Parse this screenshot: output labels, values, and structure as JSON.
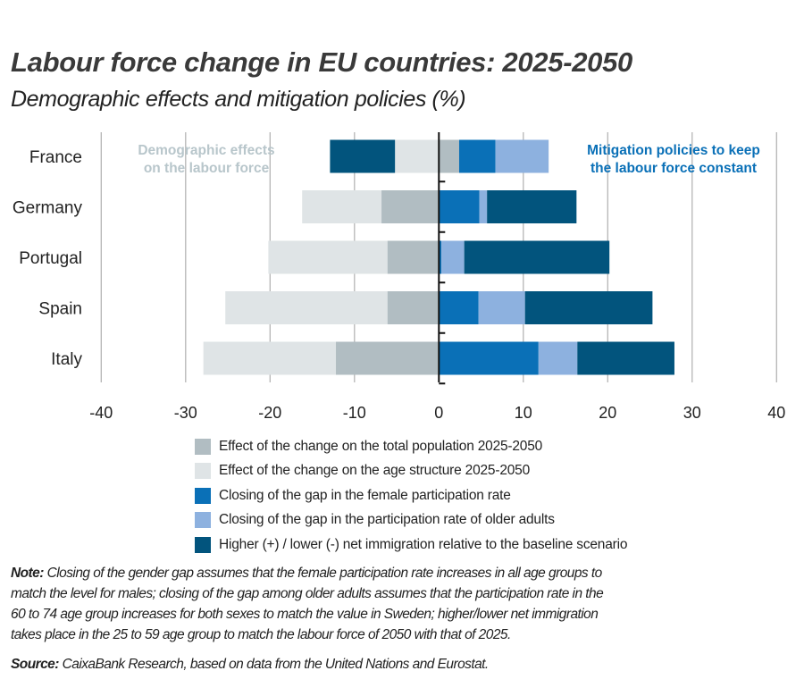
{
  "title": "Labour force change in EU countries: 2025-2050",
  "subtitle": "Demographic effects and mitigation policies (%)",
  "chart_data": {
    "type": "bar",
    "orientation": "horizontal",
    "stacked": true,
    "diverging": true,
    "categories": [
      "France",
      "Germany",
      "Portugal",
      "Spain",
      "Italy"
    ],
    "series": [
      {
        "name": "Effect of the change on the total population 2025-2050",
        "color": "#b1bdc2",
        "values": [
          2.4,
          -6.8,
          -6.1,
          -6.1,
          -12.2
        ]
      },
      {
        "name": "Effect of the change on the age structure 2025-2050",
        "color": "#dfe4e6",
        "values": [
          -5.2,
          -9.4,
          -14.1,
          -19.2,
          -15.7
        ]
      },
      {
        "name": "Closing of the gap in the female participation rate",
        "color": "#0a70b7",
        "values": [
          4.3,
          4.8,
          0.3,
          4.7,
          11.8
        ]
      },
      {
        "name": "Closing of the gap in the participation rate of older adults",
        "color": "#8db1df",
        "values": [
          6.3,
          0.9,
          2.7,
          5.5,
          4.6
        ]
      },
      {
        "name": "Higher (+) / lower (-) net immigration relative to the baseline scenario",
        "color": "#02547d",
        "values": [
          -7.7,
          10.6,
          17.2,
          15.1,
          11.5
        ]
      }
    ],
    "xlim": [
      -40,
      40
    ],
    "xticks": [
      "-40",
      "-30",
      "-20",
      "-10",
      "0",
      "10",
      "20",
      "30",
      "40"
    ],
    "grid": true,
    "legend": "bottom",
    "annotations": [
      {
        "text_lines": [
          "Demographic effects",
          "on the labour force"
        ],
        "color": "#b8c6cb"
      },
      {
        "text_lines": [
          "Mitigation policies to keep",
          "the labour force constant"
        ],
        "color": "#0a70b7"
      }
    ]
  },
  "note": {
    "label": "Note:",
    "lines": [
      "Closing of the gender gap assumes that the female participation rate increases in all age groups to",
      "match the level for males; closing of the gap among older adults assumes that the participation rate in the",
      "60 to 74 age group increases for both sexes to match the value in Sweden; higher/lower net immigration",
      "takes place in the 25 to 59 age group to match the labour force of 2050 with that of 2025."
    ]
  },
  "source": {
    "label": "Source:",
    "text": "CaixaBank Research, based on data from the United Nations and Eurostat."
  }
}
